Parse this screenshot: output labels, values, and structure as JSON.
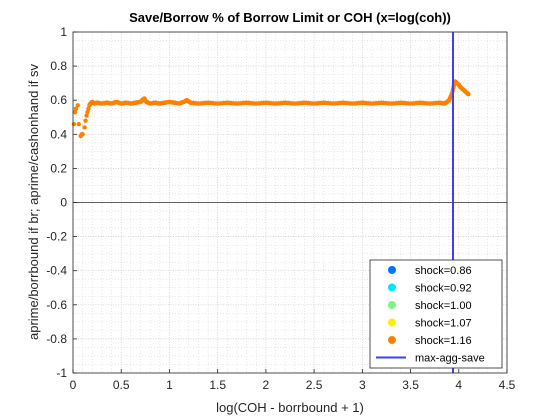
{
  "chart_data": {
    "type": "scatter",
    "title": "Save/Borrow % of Borrow Limit or COH (x=log(coh))",
    "xlabel": "log(COH - borrbound + 1)",
    "ylabel": "aprime/borrbound if br; aprime/cashonhand if sv",
    "xlim": [
      0,
      4.5
    ],
    "ylim": [
      -1,
      1
    ],
    "xticks": [
      0,
      0.5,
      1,
      1.5,
      2,
      2.5,
      3,
      3.5,
      4,
      4.5
    ],
    "xtick_labels": [
      "0",
      "0.5",
      "1",
      "1.5",
      "2",
      "2.5",
      "3",
      "3.5",
      "4",
      "4.5"
    ],
    "yticks": [
      -1,
      -0.8,
      -0.6,
      -0.4,
      -0.2,
      0,
      0.2,
      0.4,
      0.6,
      0.8,
      1
    ],
    "ytick_labels": [
      "-1",
      "-0.8",
      "-0.6",
      "-0.4",
      "-0.2",
      "0",
      "0.2",
      "0.4",
      "0.6",
      "0.8",
      "1"
    ],
    "grid": "on",
    "minor_grid": "on",
    "legend_position": "bottom-right",
    "zero_line": 0,
    "series": [
      {
        "name": "shock=0.86",
        "color": "#0072ff",
        "points": []
      },
      {
        "name": "shock=0.92",
        "color": "#00e5ff",
        "points": []
      },
      {
        "name": "shock=1.00",
        "color": "#7cf57c",
        "points": []
      },
      {
        "name": "shock=1.07",
        "color": "#ffee00",
        "points": []
      },
      {
        "name": "shock=1.16",
        "color": "#ff8000",
        "points": [
          [
            0.01,
            0.46
          ],
          [
            0.02,
            0.53
          ],
          [
            0.03,
            0.55
          ],
          [
            0.05,
            0.57
          ],
          [
            0.06,
            0.46
          ],
          [
            0.08,
            0.39
          ],
          [
            0.09,
            0.4
          ],
          [
            0.1,
            0.4
          ],
          [
            0.12,
            0.44
          ],
          [
            0.13,
            0.48
          ],
          [
            0.14,
            0.51
          ],
          [
            0.15,
            0.53
          ],
          [
            0.16,
            0.55
          ],
          [
            0.17,
            0.57
          ],
          [
            0.18,
            0.58
          ],
          [
            0.2,
            0.59
          ],
          [
            0.22,
            0.58
          ],
          [
            0.25,
            0.585
          ],
          [
            0.3,
            0.58
          ],
          [
            0.35,
            0.585
          ],
          [
            0.4,
            0.58
          ],
          [
            0.45,
            0.59
          ],
          [
            0.5,
            0.58
          ],
          [
            0.55,
            0.585
          ],
          [
            0.6,
            0.58
          ],
          [
            0.65,
            0.585
          ],
          [
            0.7,
            0.59
          ],
          [
            0.72,
            0.6
          ],
          [
            0.74,
            0.61
          ],
          [
            0.76,
            0.59
          ],
          [
            0.8,
            0.58
          ],
          [
            0.85,
            0.585
          ],
          [
            0.9,
            0.58
          ],
          [
            0.95,
            0.585
          ],
          [
            1.0,
            0.59
          ],
          [
            1.05,
            0.585
          ],
          [
            1.1,
            0.58
          ],
          [
            1.15,
            0.59
          ],
          [
            1.18,
            0.6
          ],
          [
            1.22,
            0.585
          ],
          [
            1.3,
            0.58
          ],
          [
            1.4,
            0.585
          ],
          [
            1.5,
            0.58
          ],
          [
            1.6,
            0.585
          ],
          [
            1.7,
            0.58
          ],
          [
            1.8,
            0.585
          ],
          [
            1.9,
            0.58
          ],
          [
            2.0,
            0.585
          ],
          [
            2.1,
            0.58
          ],
          [
            2.2,
            0.585
          ],
          [
            2.3,
            0.58
          ],
          [
            2.4,
            0.585
          ],
          [
            2.5,
            0.58
          ],
          [
            2.6,
            0.585
          ],
          [
            2.7,
            0.58
          ],
          [
            2.8,
            0.585
          ],
          [
            2.9,
            0.58
          ],
          [
            3.0,
            0.585
          ],
          [
            3.1,
            0.58
          ],
          [
            3.2,
            0.585
          ],
          [
            3.3,
            0.58
          ],
          [
            3.4,
            0.585
          ],
          [
            3.5,
            0.58
          ],
          [
            3.6,
            0.585
          ],
          [
            3.7,
            0.58
          ],
          [
            3.8,
            0.585
          ],
          [
            3.85,
            0.58
          ],
          [
            3.88,
            0.59
          ],
          [
            3.9,
            0.6
          ],
          [
            3.93,
            0.64
          ],
          [
            3.96,
            0.71
          ],
          [
            3.98,
            0.7
          ],
          [
            4.0,
            0.69
          ],
          [
            4.02,
            0.675
          ],
          [
            4.05,
            0.66
          ],
          [
            4.08,
            0.645
          ],
          [
            4.1,
            0.635
          ]
        ]
      }
    ],
    "vertical_line": {
      "name": "max-agg-save",
      "x": 3.94,
      "color": "#3d3dff"
    }
  }
}
